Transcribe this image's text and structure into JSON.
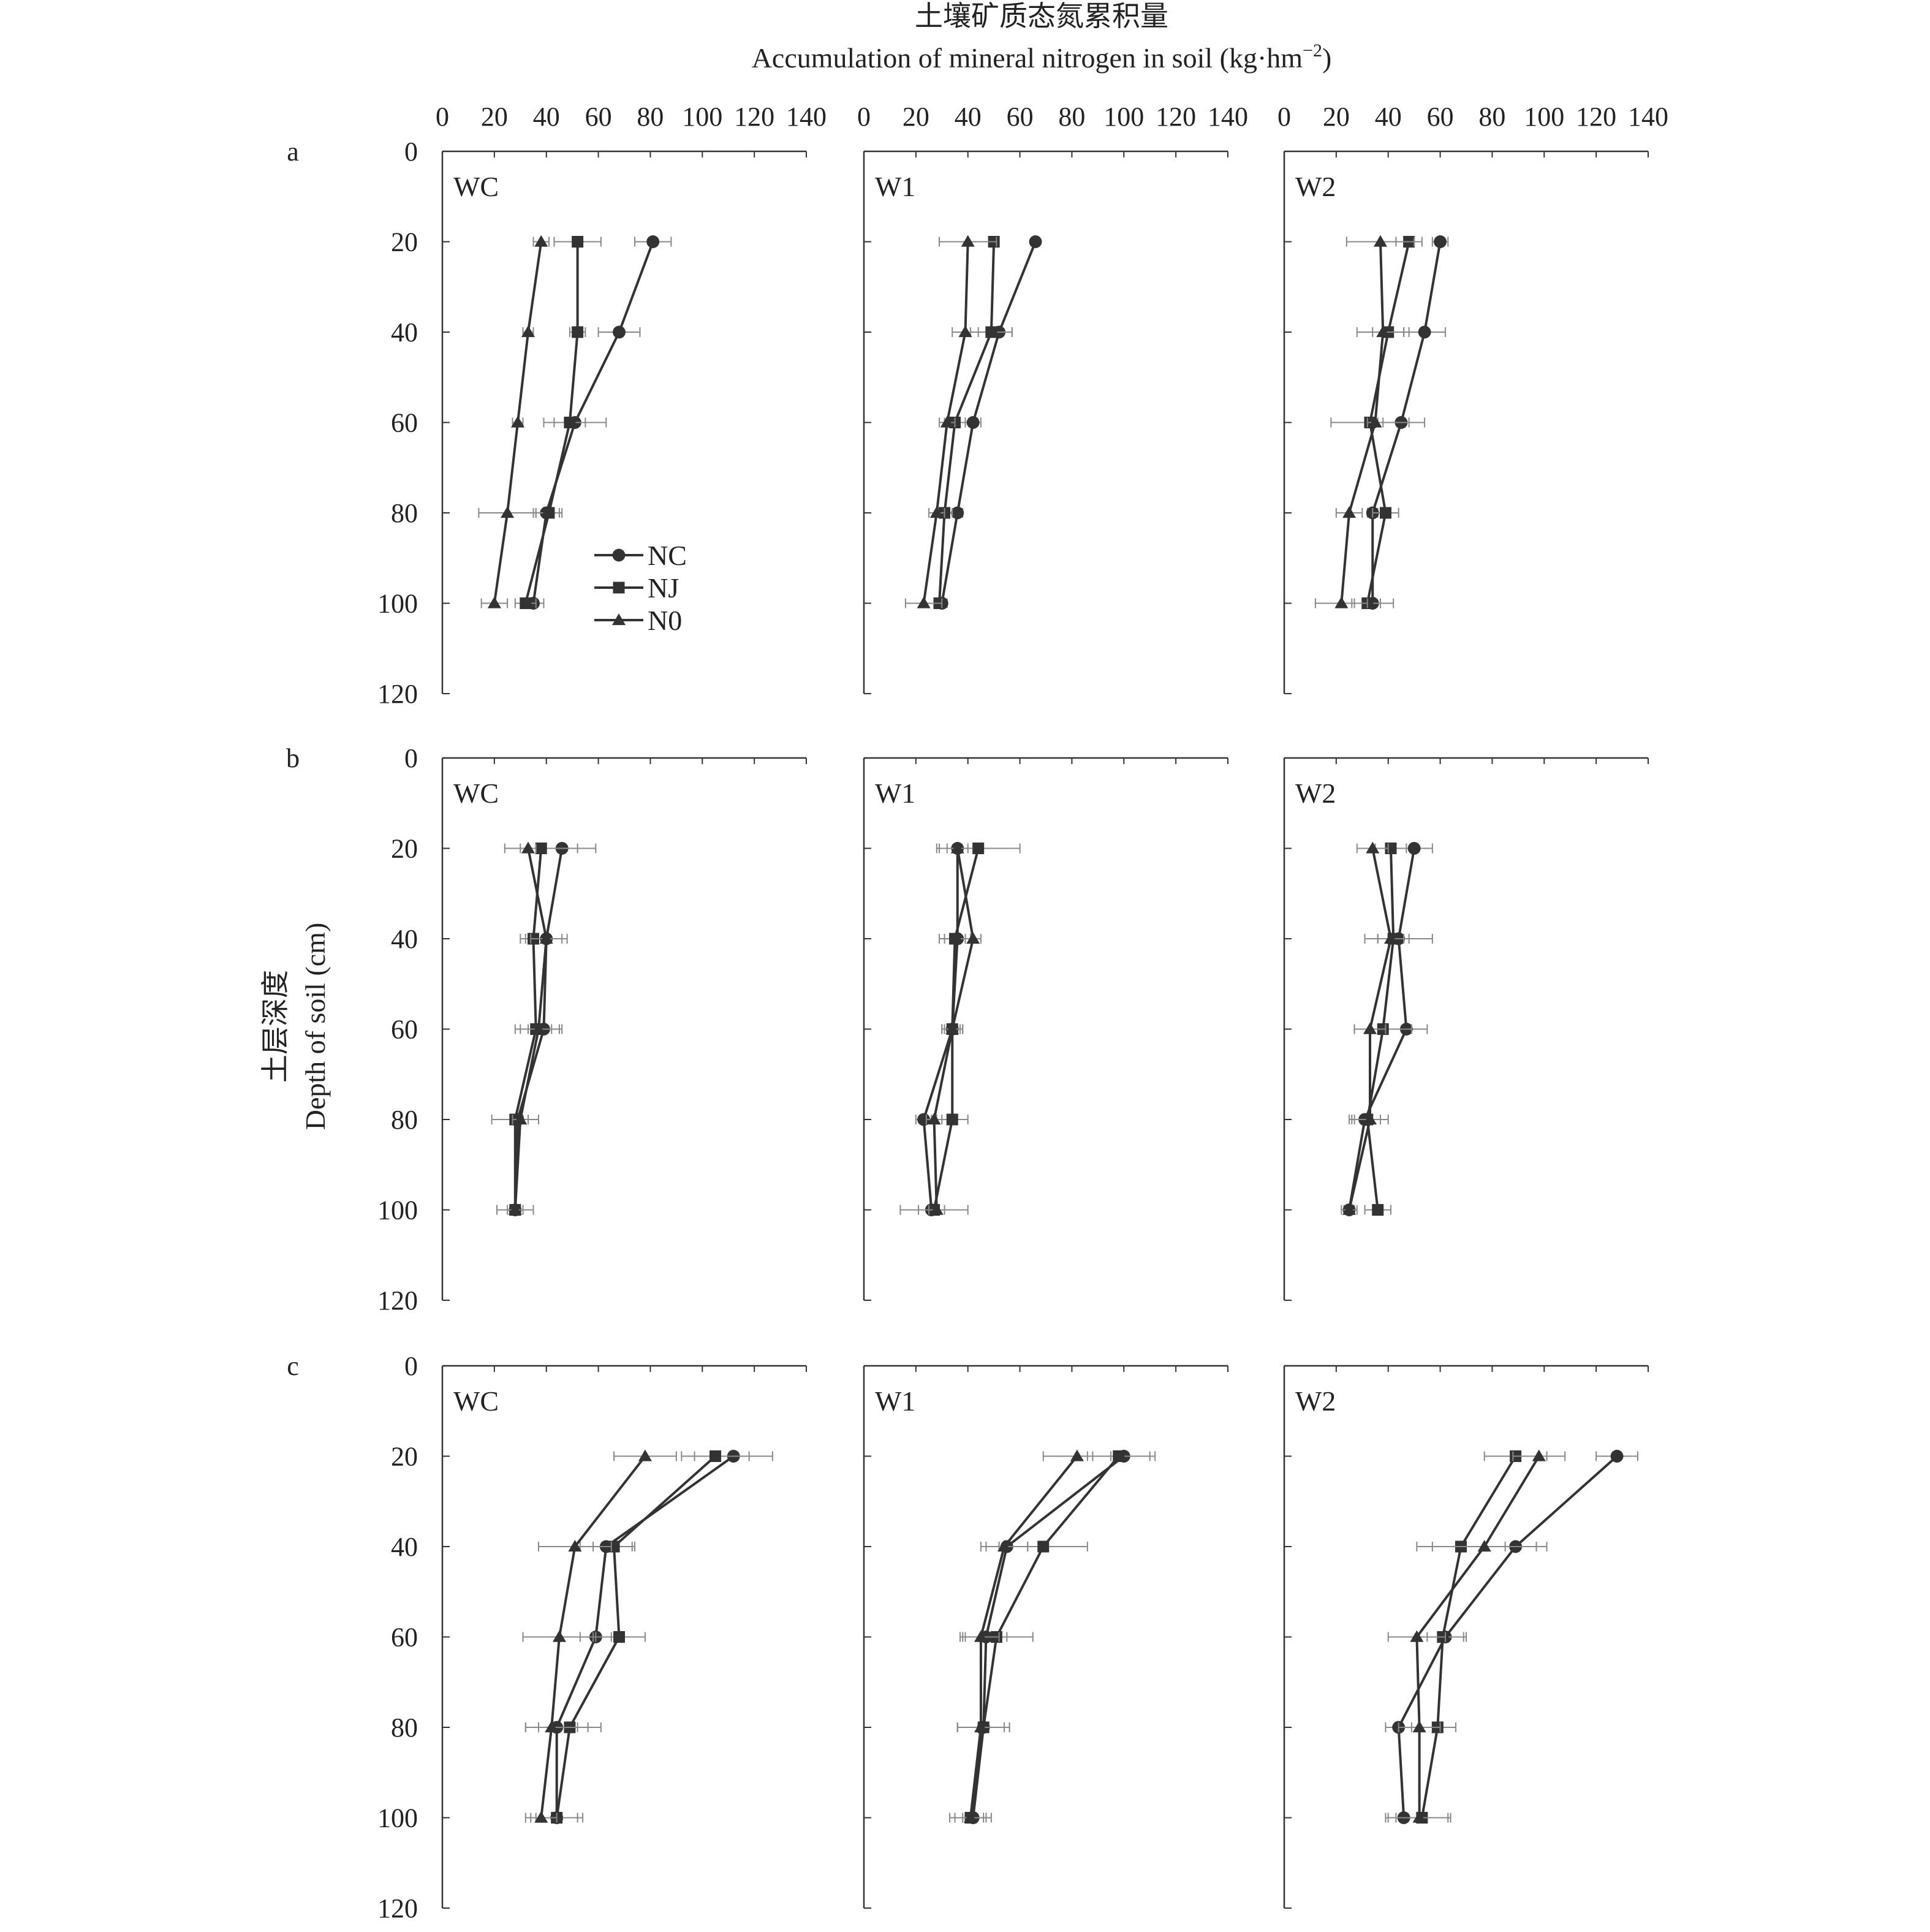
{
  "figure": {
    "title_zh": "土壤矿质态氮累积量",
    "title_en": "Accumulation of mineral nitrogen in soil (kg·hm",
    "title_en_exp": "−2",
    "title_en_end": ")",
    "ylabel_zh": "土层深度",
    "ylabel_en": "Depth of soil (cm)",
    "x_ticks": [
      "0",
      "20",
      "40",
      "60",
      "80",
      "100",
      "120",
      "140"
    ],
    "y_ticks": [
      "0",
      "20",
      "40",
      "60",
      "80",
      "100",
      "120"
    ],
    "rows": [
      "a",
      "b",
      "c"
    ],
    "panel_names": [
      "WC",
      "W1",
      "W2"
    ],
    "legend": [
      {
        "name": "NC",
        "marker": "circle"
      },
      {
        "name": "NJ",
        "marker": "square"
      },
      {
        "name": "N0",
        "marker": "triangle"
      }
    ],
    "line_color": "#333333",
    "errorbar_color": "#888888"
  },
  "chart_data": [
    {
      "type": "line",
      "row": "a",
      "panel": "WC",
      "xlim": [
        0,
        140
      ],
      "ylim": [
        0,
        120
      ],
      "depths": [
        20,
        40,
        60,
        80,
        100
      ],
      "series": [
        {
          "name": "NC",
          "values": [
            81,
            68,
            51,
            40,
            35
          ],
          "errors": [
            7,
            8,
            12,
            5,
            4
          ]
        },
        {
          "name": "NJ",
          "values": [
            52,
            52,
            49,
            41,
            32
          ],
          "errors": [
            9,
            3,
            6,
            5,
            4
          ]
        },
        {
          "name": "N0",
          "values": [
            38,
            33,
            29,
            25,
            20
          ],
          "errors": [
            3,
            2,
            2,
            11,
            5
          ]
        }
      ]
    },
    {
      "type": "line",
      "row": "a",
      "panel": "W1",
      "xlim": [
        0,
        140
      ],
      "ylim": [
        0,
        120
      ],
      "depths": [
        20,
        40,
        60,
        80,
        100
      ],
      "series": [
        {
          "name": "NC",
          "values": [
            66,
            52,
            42,
            36,
            30
          ],
          "errors": [
            0,
            5,
            3,
            2,
            2
          ]
        },
        {
          "name": "NJ",
          "values": [
            50,
            49,
            35,
            31,
            29
          ],
          "errors": [
            0,
            8,
            4,
            3,
            2
          ]
        },
        {
          "name": "N0",
          "values": [
            40,
            39,
            32,
            28,
            23
          ],
          "errors": [
            11,
            5,
            3,
            3,
            7
          ]
        }
      ]
    },
    {
      "type": "line",
      "row": "a",
      "panel": "W2",
      "xlim": [
        0,
        140
      ],
      "ylim": [
        0,
        120
      ],
      "depths": [
        20,
        40,
        60,
        80,
        100
      ],
      "series": [
        {
          "name": "NC",
          "values": [
            60,
            54,
            45,
            34,
            34
          ],
          "errors": [
            3,
            8,
            9,
            2,
            8
          ]
        },
        {
          "name": "NJ",
          "values": [
            48,
            40,
            33,
            39,
            32
          ],
          "errors": [
            5,
            6,
            15,
            5,
            5
          ]
        },
        {
          "name": "N0",
          "values": [
            37,
            38,
            35,
            25,
            22
          ],
          "errors": [
            13,
            10,
            3,
            5,
            10
          ]
        }
      ]
    },
    {
      "type": "line",
      "row": "b",
      "panel": "WC",
      "xlim": [
        0,
        140
      ],
      "ylim": [
        0,
        120
      ],
      "depths": [
        20,
        40,
        60,
        80,
        100
      ],
      "series": [
        {
          "name": "NC",
          "values": [
            46,
            40,
            39,
            29,
            28
          ],
          "errors": [
            13,
            8,
            6,
            2,
            3
          ]
        },
        {
          "name": "NJ",
          "values": [
            38,
            35,
            36,
            28,
            28
          ],
          "errors": [
            14,
            5,
            6,
            9,
            7
          ]
        },
        {
          "name": "N0",
          "values": [
            33,
            40,
            37,
            30,
            28
          ],
          "errors": [
            3,
            6,
            9,
            3,
            7
          ]
        }
      ]
    },
    {
      "type": "line",
      "row": "b",
      "panel": "W1",
      "xlim": [
        0,
        140
      ],
      "ylim": [
        0,
        120
      ],
      "depths": [
        20,
        40,
        60,
        80,
        100
      ],
      "series": [
        {
          "name": "NC",
          "values": [
            36,
            36,
            34,
            23,
            26
          ],
          "errors": [
            7,
            5,
            3,
            3,
            5
          ]
        },
        {
          "name": "NJ",
          "values": [
            44,
            35,
            34,
            34,
            27
          ],
          "errors": [
            16,
            6,
            4,
            6,
            13
          ]
        },
        {
          "name": "N0",
          "values": [
            36,
            42,
            34,
            27,
            28
          ],
          "errors": [
            4,
            3,
            4,
            3,
            3
          ]
        }
      ]
    },
    {
      "type": "line",
      "row": "b",
      "panel": "W2",
      "xlim": [
        0,
        140
      ],
      "ylim": [
        0,
        120
      ],
      "depths": [
        20,
        40,
        60,
        80,
        100
      ],
      "series": [
        {
          "name": "NC",
          "values": [
            50,
            44,
            47,
            31,
            25
          ],
          "errors": [
            7,
            13,
            8,
            6,
            2
          ]
        },
        {
          "name": "NJ",
          "values": [
            41,
            42,
            38,
            32,
            36
          ],
          "errors": [
            6,
            6,
            11,
            5,
            5
          ]
        },
        {
          "name": "N0",
          "values": [
            34,
            41,
            33,
            33,
            25
          ],
          "errors": [
            6,
            5,
            6,
            7,
            3
          ]
        }
      ]
    },
    {
      "type": "line",
      "row": "c",
      "panel": "WC",
      "xlim": [
        0,
        140
      ],
      "ylim": [
        0,
        120
      ],
      "depths": [
        20,
        40,
        60,
        80,
        100
      ],
      "series": [
        {
          "name": "NC",
          "values": [
            112,
            63,
            59,
            44,
            44
          ],
          "errors": [
            15,
            10,
            6,
            12,
            8
          ]
        },
        {
          "name": "NJ",
          "values": [
            105,
            66,
            68,
            49,
            44
          ],
          "errors": [
            13,
            8,
            10,
            12,
            10
          ]
        },
        {
          "name": "N0",
          "values": [
            78,
            51,
            45,
            42,
            38
          ],
          "errors": [
            12,
            14,
            14,
            10,
            6
          ]
        }
      ]
    },
    {
      "type": "line",
      "row": "c",
      "panel": "W1",
      "xlim": [
        0,
        140
      ],
      "ylim": [
        0,
        120
      ],
      "depths": [
        20,
        40,
        60,
        80,
        100
      ],
      "series": [
        {
          "name": "NC",
          "values": [
            100,
            55,
            47,
            46,
            42
          ],
          "errors": [
            12,
            8,
            8,
            10,
            4
          ]
        },
        {
          "name": "NJ",
          "values": [
            98,
            69,
            51,
            46,
            41
          ],
          "errors": [
            12,
            17,
            14,
            10,
            8
          ]
        },
        {
          "name": "N0",
          "values": [
            82,
            54,
            45,
            45,
            41
          ],
          "errors": [
            13,
            9,
            7,
            9,
            6
          ]
        }
      ]
    },
    {
      "type": "line",
      "row": "c",
      "panel": "W2",
      "xlim": [
        0,
        140
      ],
      "ylim": [
        0,
        120
      ],
      "depths": [
        20,
        40,
        60,
        80,
        100
      ],
      "series": [
        {
          "name": "NC",
          "values": [
            128,
            89,
            62,
            44,
            46
          ],
          "errors": [
            8,
            12,
            7,
            5,
            7
          ]
        },
        {
          "name": "NJ",
          "values": [
            89,
            68,
            61,
            59,
            53
          ],
          "errors": [
            12,
            17,
            9,
            7,
            10
          ]
        },
        {
          "name": "N0",
          "values": [
            98,
            77,
            51,
            52,
            52
          ],
          "errors": [
            10,
            20,
            11,
            8,
            12
          ]
        }
      ]
    }
  ]
}
